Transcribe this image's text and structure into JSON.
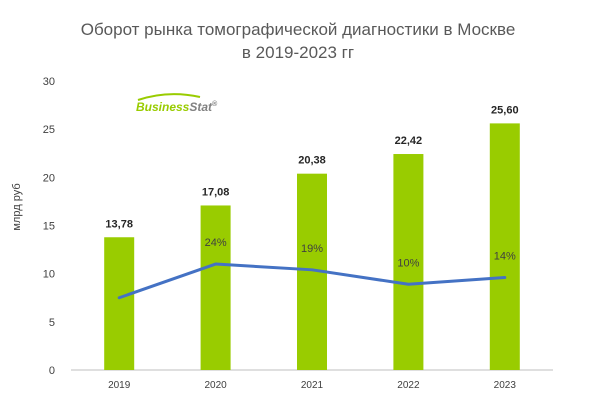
{
  "title_line1": "Оборот рынка томографической диагностики в Москве",
  "title_line2": "в 2019-2023 гг",
  "logo": {
    "text_a": "Business",
    "text_b": "Stat",
    "mark": "®"
  },
  "colors": {
    "bar": "#99cc00",
    "line": "#4472c4",
    "text": "#404040",
    "grid": "#bfbfbf"
  },
  "chart_data": {
    "type": "bar",
    "categories": [
      "2019",
      "2020",
      "2021",
      "2022",
      "2023"
    ],
    "series": [
      {
        "values": [
          13.78,
          17.08,
          20.38,
          22.42,
          25.6
        ],
        "labels": [
          "13,78",
          "17,08",
          "20,38",
          "22,42",
          "25,60"
        ]
      }
    ],
    "growth_line": {
      "values": [
        7.5,
        11.0,
        10.4,
        8.9,
        9.6
      ],
      "labels": [
        "",
        "24%",
        "19%",
        "10%",
        "14%"
      ]
    },
    "ylabel": "млрд руб",
    "ylim": [
      0,
      30
    ],
    "yticks": [
      0,
      5,
      10,
      15,
      20,
      25,
      30
    ]
  }
}
